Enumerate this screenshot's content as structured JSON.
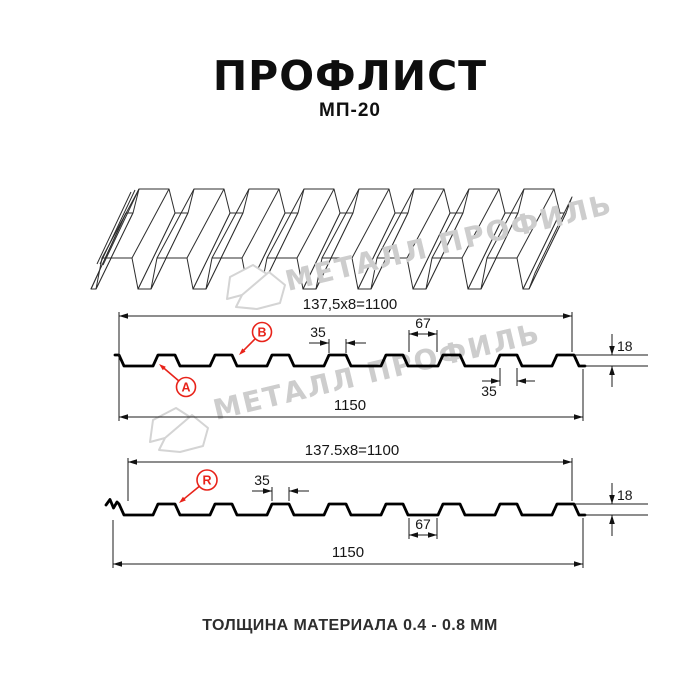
{
  "header": {
    "title": "ПРОФЛИСТ",
    "subtitle": "МП-20"
  },
  "watermark": {
    "brand_text": "МЕТАЛЛ ПРОФИЛЬ"
  },
  "drawing": {
    "section_top": {
      "pitch_dim": "137,5x8=1100",
      "overall_width_dim": "1150",
      "crest_top_width_dim": "35",
      "crest_base_width_dim": "67",
      "height_dim": "18",
      "crest_bottom_width_dim": "35",
      "label_a": "A",
      "label_b": "B"
    },
    "section_bottom": {
      "pitch_dim": "137.5x8=1100",
      "overall_width_dim": "1150",
      "crest_top_width_dim": "35",
      "valley_width_dim": "67",
      "height_dim": "18",
      "label_r": "R"
    }
  },
  "footer": {
    "thickness_note": "ТОЛЩИНА МАТЕРИАЛА 0.4 - 0.8 ММ"
  },
  "colors": {
    "accent_red": "#e8231a",
    "line_black": "#000000",
    "watermark_gray": "#cdcdcd"
  }
}
